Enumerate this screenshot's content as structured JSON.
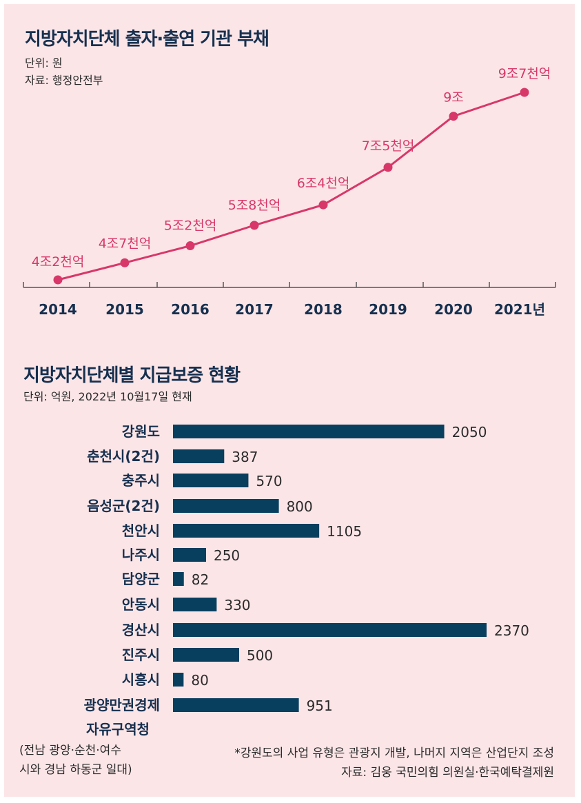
{
  "colors": {
    "background": "#fbe5e7",
    "line": "#d8376a",
    "bar": "#083f5f",
    "text": "#16304f"
  },
  "chart1": {
    "title": "지방자치단체 출자·출연 기관 부채",
    "unit": "단위: 원",
    "source": "자료: 행정안전부"
  },
  "chart2": {
    "title": "지방자치단체별 지급보증 현황",
    "unit": "단위: 억원, 2022년 10월17일 현재",
    "label_extra": "자유구역청",
    "label_note_1": "(전남 광양·순천·여수",
    "label_note_2": "시와 경남 하동군 일대)",
    "footnote": "*강원도의 사업 유형은 관광지 개발, 나머지 지역은 산업단지 조성",
    "source": "자료: 김웅 국민의힘 의원실·한국예탁결제원"
  },
  "chart_data": [
    {
      "type": "line",
      "title": "지방자치단체 출자·출연 기관 부채",
      "x": [
        "2014",
        "2015",
        "2016",
        "2017",
        "2018",
        "2019",
        "2020",
        "2021년"
      ],
      "values": [
        4.2,
        4.7,
        5.2,
        5.8,
        6.4,
        7.5,
        9.0,
        9.7
      ],
      "labels": [
        "4조2천억",
        "4조7천억",
        "5조2천억",
        "5조8천억",
        "6조4천억",
        "7조5천억",
        "9조",
        "9조7천억"
      ],
      "ylim": [
        3.7,
        10.5
      ]
    },
    {
      "type": "bar",
      "orientation": "horizontal",
      "title": "지방자치단체별 지급보증 현황",
      "categories": [
        "강원도",
        "춘천시(2건)",
        "충주시",
        "음성군(2건)",
        "천안시",
        "나주시",
        "담양군",
        "안동시",
        "경산시",
        "진주시",
        "시흥시",
        "광양만권경제"
      ],
      "values": [
        2050,
        387,
        570,
        800,
        1105,
        250,
        82,
        330,
        2370,
        500,
        80,
        951
      ],
      "xlim": [
        0,
        2370
      ]
    }
  ]
}
